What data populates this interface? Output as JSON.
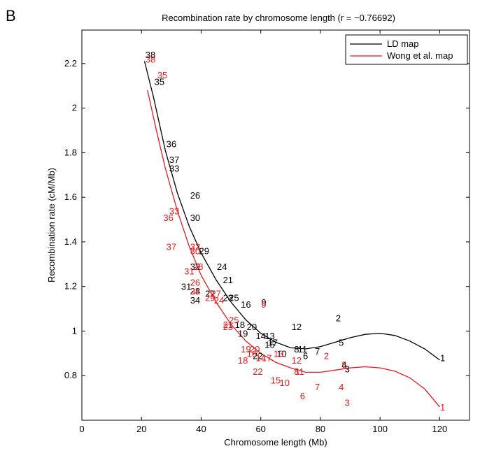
{
  "panel_label": "B",
  "chart_data": {
    "type": "scatter",
    "title": "Recombination rate by chromosome length (r = −0.76692)",
    "xlabel": "Chromosome length (Mb)",
    "ylabel": "Recombination rate (cM/Mb)",
    "xlim": [
      0,
      130
    ],
    "ylim": [
      0.6,
      2.35
    ],
    "xticks": [
      0,
      20,
      40,
      60,
      80,
      100,
      120
    ],
    "yticks": [
      0.8,
      1,
      1.2,
      1.4,
      1.6,
      1.8,
      2,
      2.2
    ],
    "grid": false,
    "legend_position": "top-right",
    "series": [
      {
        "name": "LD map",
        "color": "#000000",
        "fit_line": [
          [
            21,
            2.21
          ],
          [
            24,
            2.05
          ],
          [
            28,
            1.81
          ],
          [
            32,
            1.62
          ],
          [
            36,
            1.47
          ],
          [
            40,
            1.35
          ],
          [
            45,
            1.23
          ],
          [
            50,
            1.13
          ],
          [
            55,
            1.05
          ],
          [
            60,
            0.99
          ],
          [
            65,
            0.95
          ],
          [
            70,
            0.925
          ],
          [
            75,
            0.92
          ],
          [
            80,
            0.93
          ],
          [
            85,
            0.95
          ],
          [
            90,
            0.97
          ],
          [
            95,
            0.985
          ],
          [
            100,
            0.99
          ],
          [
            105,
            0.98
          ],
          [
            110,
            0.955
          ],
          [
            115,
            0.92
          ],
          [
            120,
            0.87
          ]
        ],
        "points": [
          {
            "label": "1",
            "x": 121,
            "y": 0.88
          },
          {
            "label": "2",
            "x": 86,
            "y": 1.06
          },
          {
            "label": "3",
            "x": 89,
            "y": 0.83
          },
          {
            "label": "4",
            "x": 88,
            "y": 0.85
          },
          {
            "label": "5",
            "x": 87,
            "y": 0.95
          },
          {
            "label": "6",
            "x": 75,
            "y": 0.89
          },
          {
            "label": "7",
            "x": 79,
            "y": 0.91
          },
          {
            "label": "8",
            "x": 72,
            "y": 0.92
          },
          {
            "label": "9",
            "x": 61,
            "y": 1.13
          },
          {
            "label": "10",
            "x": 67,
            "y": 0.9
          },
          {
            "label": "11",
            "x": 74,
            "y": 0.92
          },
          {
            "label": "12",
            "x": 72,
            "y": 1.02
          },
          {
            "label": "13",
            "x": 63,
            "y": 0.98
          },
          {
            "label": "14",
            "x": 60,
            "y": 0.98
          },
          {
            "label": "15",
            "x": 63,
            "y": 0.94
          },
          {
            "label": "16",
            "x": 55,
            "y": 1.12
          },
          {
            "label": "17",
            "x": 64,
            "y": 0.95
          },
          {
            "label": "18",
            "x": 53,
            "y": 1.03
          },
          {
            "label": "19",
            "x": 54,
            "y": 0.99
          },
          {
            "label": "20",
            "x": 57,
            "y": 1.02
          },
          {
            "label": "21",
            "x": 49,
            "y": 1.23
          },
          {
            "label": "22",
            "x": 59,
            "y": 0.89
          },
          {
            "label": "23",
            "x": 49,
            "y": 1.15
          },
          {
            "label": "24",
            "x": 47,
            "y": 1.29
          },
          {
            "label": "25",
            "x": 51,
            "y": 1.15
          },
          {
            "label": "26",
            "x": 38,
            "y": 1.61
          },
          {
            "label": "27",
            "x": 43,
            "y": 1.17
          },
          {
            "label": "28",
            "x": 38,
            "y": 1.18
          },
          {
            "label": "29",
            "x": 41,
            "y": 1.36
          },
          {
            "label": "30",
            "x": 38,
            "y": 1.51
          },
          {
            "label": "31",
            "x": 35,
            "y": 1.2
          },
          {
            "label": "32",
            "x": 38,
            "y": 1.29
          },
          {
            "label": "33",
            "x": 31,
            "y": 1.73
          },
          {
            "label": "34",
            "x": 38,
            "y": 1.14
          },
          {
            "label": "35",
            "x": 26,
            "y": 2.12
          },
          {
            "label": "36",
            "x": 30,
            "y": 1.84
          },
          {
            "label": "37",
            "x": 31,
            "y": 1.77
          },
          {
            "label": "38",
            "x": 23,
            "y": 2.24
          }
        ]
      },
      {
        "name": "Wong et al. map",
        "color": "#e8191b",
        "fit_line": [
          [
            22,
            2.08
          ],
          [
            25,
            1.9
          ],
          [
            28,
            1.73
          ],
          [
            32,
            1.54
          ],
          [
            36,
            1.38
          ],
          [
            40,
            1.25
          ],
          [
            45,
            1.13
          ],
          [
            50,
            1.03
          ],
          [
            55,
            0.955
          ],
          [
            60,
            0.9
          ],
          [
            65,
            0.86
          ],
          [
            70,
            0.835
          ],
          [
            75,
            0.815
          ],
          [
            80,
            0.815
          ],
          [
            85,
            0.825
          ],
          [
            90,
            0.835
          ],
          [
            95,
            0.84
          ],
          [
            100,
            0.835
          ],
          [
            105,
            0.82
          ],
          [
            110,
            0.79
          ],
          [
            115,
            0.74
          ],
          [
            120,
            0.66
          ]
        ],
        "points": [
          {
            "label": "1",
            "x": 121,
            "y": 0.66
          },
          {
            "label": "2",
            "x": 82,
            "y": 0.89
          },
          {
            "label": "3",
            "x": 89,
            "y": 0.68
          },
          {
            "label": "4",
            "x": 87,
            "y": 0.75
          },
          {
            "label": "5",
            "x": 88,
            "y": 0.85
          },
          {
            "label": "6",
            "x": 74,
            "y": 0.71
          },
          {
            "label": "7",
            "x": 79,
            "y": 0.75
          },
          {
            "label": "8",
            "x": 72,
            "y": 0.82
          },
          {
            "label": "9",
            "x": 61,
            "y": 1.12
          },
          {
            "label": "10",
            "x": 68,
            "y": 0.77
          },
          {
            "label": "11",
            "x": 73,
            "y": 0.82
          },
          {
            "label": "12",
            "x": 72,
            "y": 0.87
          },
          {
            "label": "13",
            "x": 66,
            "y": 0.9
          },
          {
            "label": "14",
            "x": 60,
            "y": 0.88
          },
          {
            "label": "15",
            "x": 65,
            "y": 0.78
          },
          {
            "label": "16",
            "x": 57,
            "y": 0.9
          },
          {
            "label": "17",
            "x": 62,
            "y": 0.88
          },
          {
            "label": "18",
            "x": 54,
            "y": 0.87
          },
          {
            "label": "19",
            "x": 55,
            "y": 0.92
          },
          {
            "label": "20",
            "x": 58,
            "y": 0.92
          },
          {
            "label": "21",
            "x": 49,
            "y": 1.03
          },
          {
            "label": "22",
            "x": 59,
            "y": 0.82
          },
          {
            "label": "23",
            "x": 49,
            "y": 1.02
          },
          {
            "label": "24",
            "x": 46,
            "y": 1.14
          },
          {
            "label": "25",
            "x": 51,
            "y": 1.05
          },
          {
            "label": "26",
            "x": 38,
            "y": 1.22
          },
          {
            "label": "27",
            "x": 45,
            "y": 1.17
          },
          {
            "label": "28",
            "x": 39,
            "y": 1.29
          },
          {
            "label": "29",
            "x": 43,
            "y": 1.15
          },
          {
            "label": "30",
            "x": 38,
            "y": 1.36
          },
          {
            "label": "31",
            "x": 36,
            "y": 1.27
          },
          {
            "label": "32",
            "x": 38,
            "y": 1.38
          },
          {
            "label": "33",
            "x": 31,
            "y": 1.54
          },
          {
            "label": "34",
            "x": 38,
            "y": 1.18
          },
          {
            "label": "35",
            "x": 27,
            "y": 2.15
          },
          {
            "label": "36",
            "x": 29,
            "y": 1.51
          },
          {
            "label": "37",
            "x": 30,
            "y": 1.38
          },
          {
            "label": "38",
            "x": 23,
            "y": 2.22
          }
        ]
      }
    ]
  }
}
